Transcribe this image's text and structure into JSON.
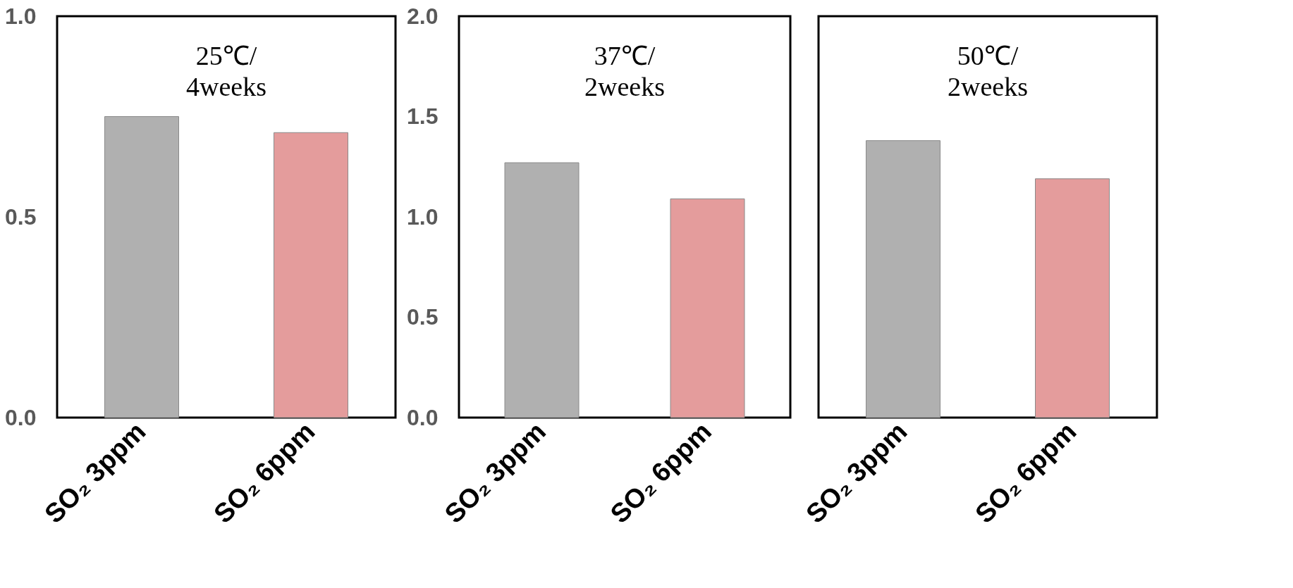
{
  "chart_data": [
    {
      "type": "bar",
      "title": "25℃/\n4weeks",
      "categories": [
        "SO₂ 3ppm",
        "SO₂ 6ppm"
      ],
      "values": [
        0.75,
        0.71
      ],
      "colors": [
        "#b0b0b0",
        "#e49c9c"
      ],
      "ylim": [
        0,
        1
      ],
      "yticks": [
        {
          "value": 0,
          "label": "0.0"
        },
        {
          "value": 0.5,
          "label": "0.5"
        },
        {
          "value": 1,
          "label": "1.0"
        }
      ],
      "grid": false
    },
    {
      "type": "bar",
      "title": "37℃/\n2weeks",
      "categories": [
        "SO₂ 3ppm",
        "SO₂ 6ppm"
      ],
      "values": [
        1.27,
        1.09
      ],
      "colors": [
        "#b0b0b0",
        "#e49c9c"
      ],
      "ylim": [
        0,
        2
      ],
      "yticks": [
        {
          "value": 0,
          "label": "0.0"
        },
        {
          "value": 0.5,
          "label": "0.5"
        },
        {
          "value": 1,
          "label": "1.0"
        },
        {
          "value": 1.5,
          "label": "1.5"
        },
        {
          "value": 2,
          "label": "2.0"
        }
      ],
      "grid": false
    },
    {
      "type": "bar",
      "title": "50℃/\n2weeks",
      "categories": [
        "SO₂ 3ppm",
        "SO₂ 6ppm"
      ],
      "values": [
        1.38,
        1.19
      ],
      "colors": [
        "#b0b0b0",
        "#e49c9c"
      ],
      "ylim": [
        0,
        2
      ],
      "tick_labels": "x",
      "grid": false
    }
  ]
}
